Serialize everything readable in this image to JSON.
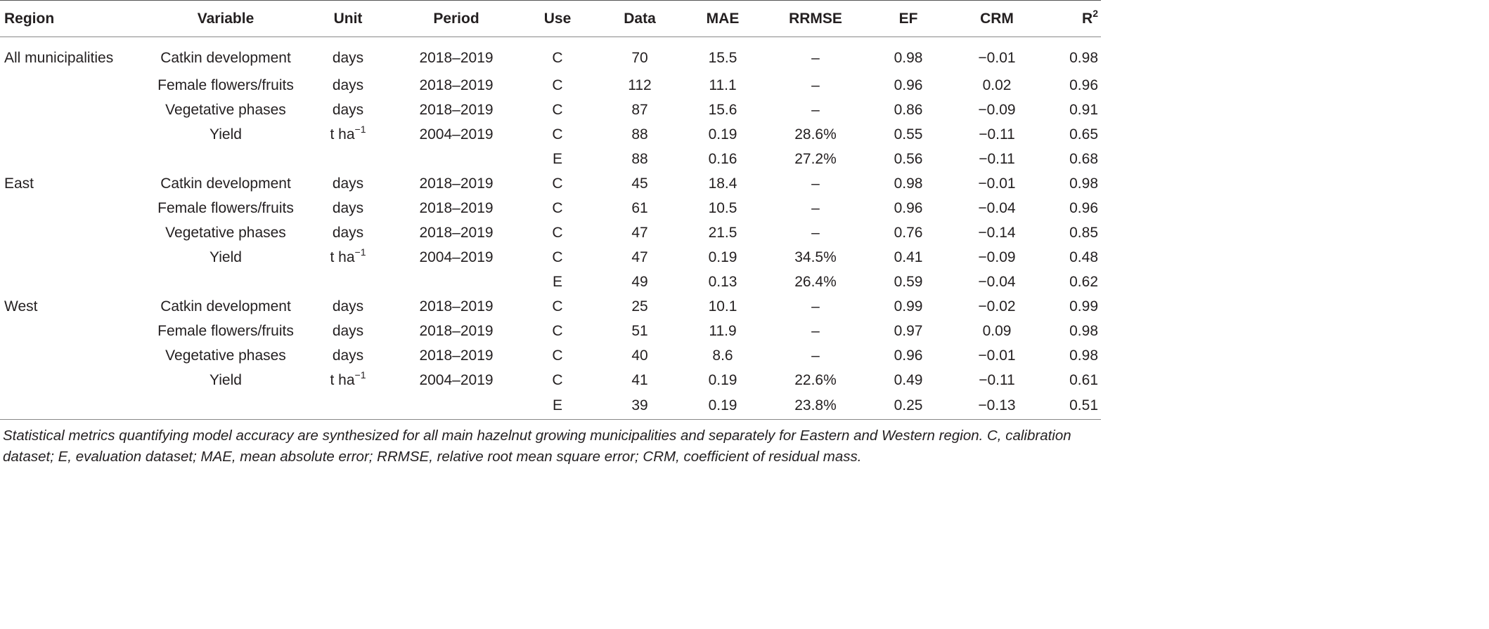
{
  "headers": {
    "region": "Region",
    "variable": "Variable",
    "unit": "Unit",
    "period": "Period",
    "use": "Use",
    "data": "Data",
    "mae": "MAE",
    "rrmse": "RRMSE",
    "ef": "EF",
    "crm": "CRM",
    "r2_base": "R",
    "r2_sup": "2"
  },
  "rows": [
    {
      "region": "All municipalities",
      "variable": "Catkin development",
      "unit": "days",
      "unit_sup": "",
      "period": "2018–2019",
      "use": "C",
      "data": "70",
      "mae": "15.5",
      "rrmse": "–",
      "ef": "0.98",
      "crm": "−0.01",
      "r2": "0.98"
    },
    {
      "region": "",
      "variable": "Female flowers/fruits",
      "unit": "days",
      "unit_sup": "",
      "period": "2018–2019",
      "use": "C",
      "data": "112",
      "mae": "11.1",
      "rrmse": "–",
      "ef": "0.96",
      "crm": "0.02",
      "r2": "0.96"
    },
    {
      "region": "",
      "variable": "Vegetative phases",
      "unit": "days",
      "unit_sup": "",
      "period": "2018–2019",
      "use": "C",
      "data": "87",
      "mae": "15.6",
      "rrmse": "–",
      "ef": "0.86",
      "crm": "−0.09",
      "r2": "0.91"
    },
    {
      "region": "",
      "variable": "Yield",
      "unit": "t ha",
      "unit_sup": "−1",
      "period": "2004–2019",
      "use": "C",
      "data": "88",
      "mae": "0.19",
      "rrmse": "28.6%",
      "ef": "0.55",
      "crm": "−0.11",
      "r2": "0.65"
    },
    {
      "region": "",
      "variable": "",
      "unit": "",
      "unit_sup": "",
      "period": "",
      "use": "E",
      "data": "88",
      "mae": "0.16",
      "rrmse": "27.2%",
      "ef": "0.56",
      "crm": "−0.11",
      "r2": "0.68"
    },
    {
      "region": "East",
      "variable": "Catkin development",
      "unit": "days",
      "unit_sup": "",
      "period": "2018–2019",
      "use": "C",
      "data": "45",
      "mae": "18.4",
      "rrmse": "–",
      "ef": "0.98",
      "crm": "−0.01",
      "r2": "0.98"
    },
    {
      "region": "",
      "variable": "Female flowers/fruits",
      "unit": "days",
      "unit_sup": "",
      "period": "2018–2019",
      "use": "C",
      "data": "61",
      "mae": "10.5",
      "rrmse": "–",
      "ef": "0.96",
      "crm": "−0.04",
      "r2": "0.96"
    },
    {
      "region": "",
      "variable": "Vegetative phases",
      "unit": "days",
      "unit_sup": "",
      "period": "2018–2019",
      "use": "C",
      "data": "47",
      "mae": "21.5",
      "rrmse": "–",
      "ef": "0.76",
      "crm": "−0.14",
      "r2": "0.85"
    },
    {
      "region": "",
      "variable": "Yield",
      "unit": "t ha",
      "unit_sup": "−1",
      "period": "2004–2019",
      "use": "C",
      "data": "47",
      "mae": "0.19",
      "rrmse": "34.5%",
      "ef": "0.41",
      "crm": "−0.09",
      "r2": "0.48"
    },
    {
      "region": "",
      "variable": "",
      "unit": "",
      "unit_sup": "",
      "period": "",
      "use": "E",
      "data": "49",
      "mae": "0.13",
      "rrmse": "26.4%",
      "ef": "0.59",
      "crm": "−0.04",
      "r2": "0.62"
    },
    {
      "region": "West",
      "variable": "Catkin development",
      "unit": "days",
      "unit_sup": "",
      "period": "2018–2019",
      "use": "C",
      "data": "25",
      "mae": "10.1",
      "rrmse": "–",
      "ef": "0.99",
      "crm": "−0.02",
      "r2": "0.99"
    },
    {
      "region": "",
      "variable": "Female flowers/fruits",
      "unit": "days",
      "unit_sup": "",
      "period": "2018–2019",
      "use": "C",
      "data": "51",
      "mae": "11.9",
      "rrmse": "–",
      "ef": "0.97",
      "crm": "0.09",
      "r2": "0.98"
    },
    {
      "region": "",
      "variable": "Vegetative phases",
      "unit": "days",
      "unit_sup": "",
      "period": "2018–2019",
      "use": "C",
      "data": "40",
      "mae": "8.6",
      "rrmse": "–",
      "ef": "0.96",
      "crm": "−0.01",
      "r2": "0.98"
    },
    {
      "region": "",
      "variable": "Yield",
      "unit": "t ha",
      "unit_sup": "−1",
      "period": "2004–2019",
      "use": "C",
      "data": "41",
      "mae": "0.19",
      "rrmse": "22.6%",
      "ef": "0.49",
      "crm": "−0.11",
      "r2": "0.61"
    },
    {
      "region": "",
      "variable": "",
      "unit": "",
      "unit_sup": "",
      "period": "",
      "use": "E",
      "data": "39",
      "mae": "0.19",
      "rrmse": "23.8%",
      "ef": "0.25",
      "crm": "−0.13",
      "r2": "0.51"
    }
  ],
  "footnote": "Statistical metrics quantifying model accuracy are synthesized for all main hazelnut growing municipalities and separately for Eastern and Western region. C, calibration dataset; E, evaluation dataset; MAE, mean absolute error; RRMSE, relative root mean square error; CRM, coefficient of residual mass."
}
